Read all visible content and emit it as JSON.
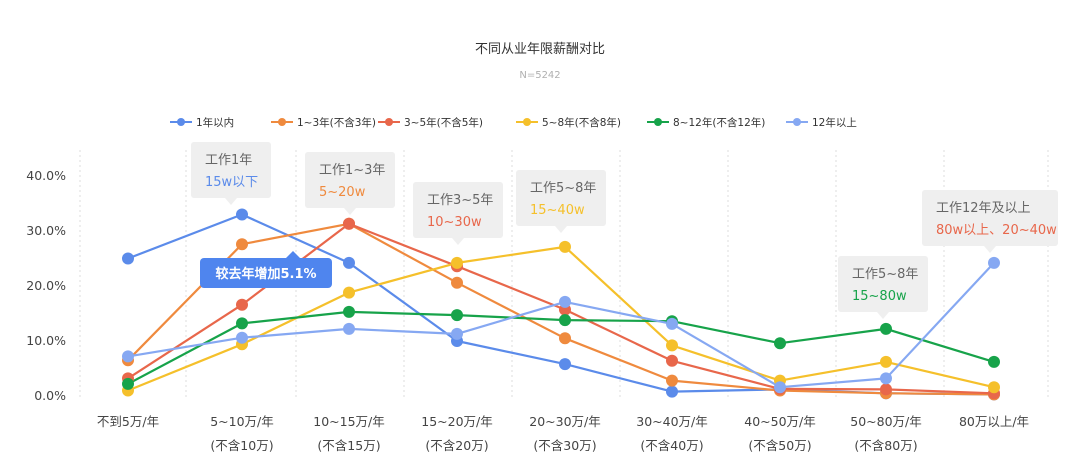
{
  "chart_data": {
    "type": "line",
    "title": "不同从业年限薪酬对比",
    "subtitle": "N=5242",
    "xlabel": "",
    "ylabel": "",
    "ylim": [
      0,
      40
    ],
    "y_ticks": [
      "0.0%",
      "10.0%",
      "20.0%",
      "30.0%",
      "40.0%"
    ],
    "grid": "vertical dashed",
    "legend_position": "top",
    "categories": [
      [
        "不到5万/年"
      ],
      [
        "5~10万/年",
        "(不含10万)"
      ],
      [
        "10~15万/年",
        "(不含15万)"
      ],
      [
        "15~20万/年",
        "(不含20万)"
      ],
      [
        "20~30万/年",
        "(不含30万)"
      ],
      [
        "30~40万/年",
        "(不含40万)"
      ],
      [
        "40~50万/年",
        "(不含50万)"
      ],
      [
        "50~80万/年",
        "(不含80万)"
      ],
      [
        "80万以上/年"
      ]
    ],
    "series": [
      {
        "name": "1年以内",
        "color": "#5b8bea",
        "values": [
          25.0,
          33.0,
          24.2,
          10.0,
          5.8,
          0.8,
          1.2,
          0.5,
          0.3
        ]
      },
      {
        "name": "1~3年(不含3年)",
        "color": "#ef8a3e",
        "values": [
          6.5,
          27.6,
          31.3,
          20.6,
          10.5,
          2.8,
          1.0,
          0.5,
          0.3
        ]
      },
      {
        "name": "3~5年(不含5年)",
        "color": "#e8674b",
        "values": [
          3.2,
          16.6,
          31.3,
          23.6,
          15.7,
          6.4,
          1.3,
          1.2,
          0.5
        ]
      },
      {
        "name": "5~8年(不含8年)",
        "color": "#f5c02b",
        "values": [
          1.0,
          9.4,
          18.8,
          24.2,
          27.1,
          9.2,
          2.8,
          6.2,
          1.6
        ]
      },
      {
        "name": "8~12年(不含12年)",
        "color": "#17a34a",
        "values": [
          2.2,
          13.2,
          15.3,
          14.7,
          13.8,
          13.6,
          9.6,
          12.2,
          6.2
        ]
      },
      {
        "name": "12年以上",
        "color": "#86a8f2",
        "values": [
          7.2,
          10.6,
          12.2,
          11.3,
          17.1,
          13.1,
          1.6,
          3.2,
          24.2
        ]
      }
    ],
    "annotations": [
      {
        "title": "工作1年",
        "detail": "15w以下",
        "color": "#5b8bea",
        "category": 1
      },
      {
        "title": "工作1~3年",
        "detail": "5~20w",
        "color": "#ef8a3e",
        "category": 2
      },
      {
        "title": "工作3~5年",
        "detail": "10~30w",
        "color": "#e8674b",
        "category": 3
      },
      {
        "title": "工作5~8年",
        "detail": "15~40w",
        "color": "#f5c02b",
        "category": 4
      },
      {
        "title": "工作5~8年",
        "detail": "15~80w",
        "color": "#17a34a",
        "category": 7
      },
      {
        "title": "工作12年及以上",
        "detail": "80w以上、20~40w",
        "color": "#e8674b",
        "category": 8
      }
    ],
    "badge": {
      "text": "较去年增加5.1%",
      "color": "#4f85ee"
    }
  }
}
